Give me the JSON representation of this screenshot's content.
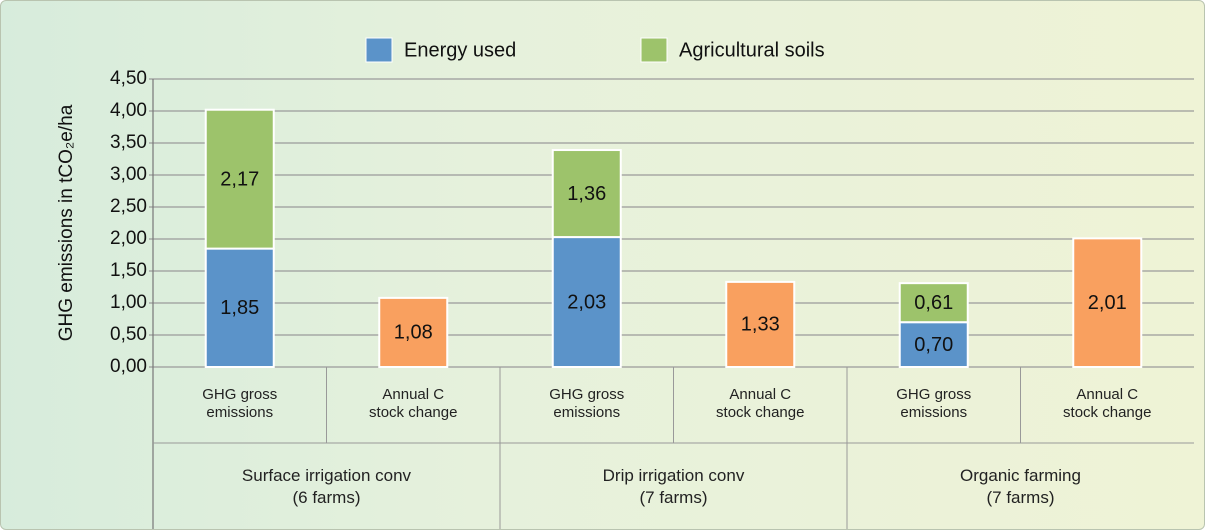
{
  "chart_data": {
    "type": "stacked_bar",
    "ylabel": "GHG emissions in tCO₂e/ha",
    "categories": [
      "GHG gross\nemissions",
      "Annual C\nstock change",
      "GHG gross\nemissions",
      "Annual C\nstock change",
      "GHG gross\nemissions",
      "Annual C\nstock change"
    ],
    "groups": [
      "Surface irrigation conv\n(6 farms)",
      "Drip irrigation conv\n(7 farms)",
      "Organic farming\n(7 farms)"
    ],
    "series": [
      {
        "name": "Energy used",
        "color": "#5b93c9",
        "values": [
          1.85,
          null,
          2.03,
          null,
          0.7,
          null
        ],
        "value_labels": [
          "1,85",
          null,
          "2,03",
          null,
          "0,70",
          null
        ]
      },
      {
        "name": "Agricultural soils",
        "color": "#9dc36b",
        "values": [
          2.17,
          null,
          1.36,
          null,
          0.61,
          null
        ],
        "value_labels": [
          "2,17",
          null,
          "1,36",
          null,
          "0,61",
          null
        ]
      },
      {
        "color": "#f9a05f",
        "values": [
          null,
          1.08,
          null,
          1.33,
          null,
          2.01
        ],
        "value_labels": [
          null,
          "1,08",
          null,
          "1,33",
          null,
          "2,01"
        ]
      }
    ],
    "ylim": [
      0,
      4.5
    ],
    "yticks": [
      {
        "value": 0,
        "label": "0,00"
      },
      {
        "value": 0.5,
        "label": "0,50"
      },
      {
        "value": 1,
        "label": "1,00"
      },
      {
        "value": 1.5,
        "label": "1,50"
      },
      {
        "value": 2,
        "label": "2,00"
      },
      {
        "value": 2.5,
        "label": "2,50"
      },
      {
        "value": 3,
        "label": "3,00"
      },
      {
        "value": 3.5,
        "label": "3,50"
      },
      {
        "value": 4,
        "label": "4,00"
      },
      {
        "value": 4.5,
        "label": "4,50"
      }
    ],
    "grid": true,
    "legend": "top"
  }
}
